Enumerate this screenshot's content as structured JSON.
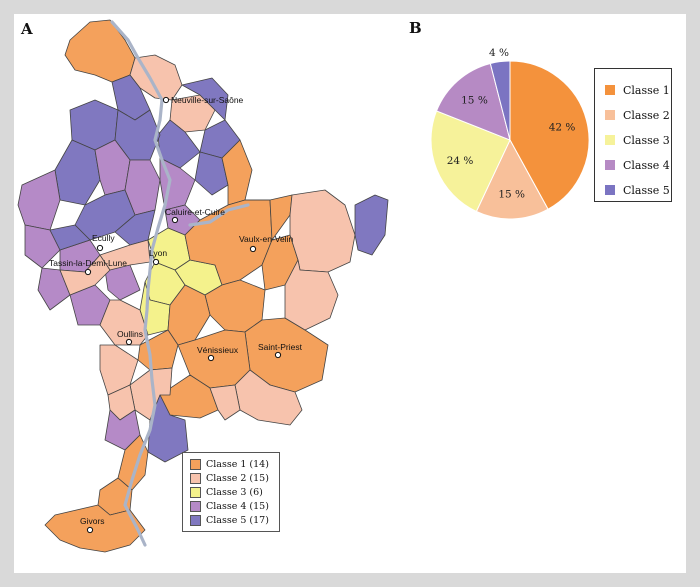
{
  "panel_a": {
    "letter": "A",
    "cities": [
      {
        "id": "neuville",
        "name": "Neuville-sur-Saône"
      },
      {
        "id": "caluire",
        "name": "Caluire-et-Cuire"
      },
      {
        "id": "ecully",
        "name": "Ecully"
      },
      {
        "id": "tassin",
        "name": "Tassin-la-Demi-Lune"
      },
      {
        "id": "lyon",
        "name": "Lyon"
      },
      {
        "id": "vaulx",
        "name": "Vaulx-en-Velin"
      },
      {
        "id": "oullins",
        "name": "Oullins"
      },
      {
        "id": "venissieux",
        "name": "Vénissieux"
      },
      {
        "id": "saint_priest",
        "name": "Saint-Priest"
      },
      {
        "id": "givors",
        "name": "Givors"
      }
    ],
    "legend": [
      {
        "label": "Classe 1 (14)",
        "color": "#f4a15c"
      },
      {
        "label": "Classe 2 (15)",
        "color": "#f7c3ad"
      },
      {
        "label": "Classe 3 (6)",
        "color": "#f4f28c"
      },
      {
        "label": "Classe 4 (15)",
        "color": "#b58ac7"
      },
      {
        "label": "Classe 5 (17)",
        "color": "#8078c0"
      }
    ],
    "colors": {
      "c1": "#f4a15c",
      "c2": "#f7c3ad",
      "c3": "#f4f28c",
      "c4": "#b58ac7",
      "c5": "#8078c0",
      "river": "#aab4c8",
      "border": "#444444"
    }
  },
  "panel_b": {
    "letter": "B",
    "legend": [
      {
        "label": "Classe 1",
        "color": "#f4923c"
      },
      {
        "label": "Classe 2",
        "color": "#f8c09a"
      },
      {
        "label": "Classe 3",
        "color": "#f6f29a"
      },
      {
        "label": "Classe 4",
        "color": "#b68ac4"
      },
      {
        "label": "Classe 5",
        "color": "#7b74c2"
      }
    ]
  },
  "chart_data": {
    "type": "pie",
    "categories": [
      "Classe 1",
      "Classe 2",
      "Classe 3",
      "Classe 4",
      "Classe 5"
    ],
    "values": [
      42,
      15,
      24,
      15,
      4
    ],
    "labels": [
      "42 %",
      "15 %",
      "24 %",
      "15 %",
      "4 %"
    ],
    "colors": [
      "#f4923c",
      "#f8c09a",
      "#f6f29a",
      "#b68ac4",
      "#7b74c2"
    ],
    "start": "top",
    "direction": "clockwise",
    "legend_position": "right"
  }
}
